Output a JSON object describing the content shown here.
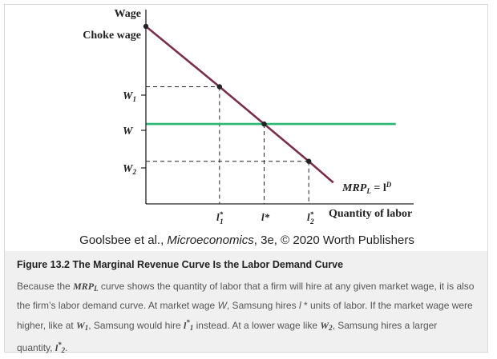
{
  "chart_data": {
    "type": "line",
    "title": "",
    "ylabel": "Wage",
    "xlabel": "Quantity of labor",
    "y_ticks": {
      "choke": "Choke wage",
      "w1": "W",
      "w1_sub": "1",
      "w": "W",
      "w2": "W",
      "w2_sub": "2"
    },
    "x_ticks": {
      "l1": "l",
      "l1_sup": "*",
      "l1_sub": "1",
      "l": "l*",
      "l2": "l",
      "l2_sup": "*",
      "l2_sub": "2"
    },
    "series": [
      {
        "name": "MRP = l",
        "label_main": "MRP",
        "label_sub": "L",
        "label_eq": " = l",
        "label_sup": "D",
        "color": "#7a2e4d",
        "points": [
          [
            0,
            100
          ],
          [
            33,
            66
          ],
          [
            53,
            45
          ],
          [
            73,
            24
          ],
          [
            84,
            12
          ]
        ]
      },
      {
        "color": "#2bb673",
        "points": [
          [
            0,
            45
          ],
          [
            112,
            45
          ]
        ]
      }
    ],
    "markers": [
      [
        0,
        100
      ],
      [
        33,
        66
      ],
      [
        53,
        45
      ],
      [
        73,
        24
      ]
    ],
    "guides": [
      {
        "from": [
          0,
          66
        ],
        "to": [
          33,
          66
        ]
      },
      {
        "from": [
          33,
          66
        ],
        "to": [
          33,
          0
        ]
      },
      {
        "from": [
          53,
          45
        ],
        "to": [
          53,
          0
        ]
      },
      {
        "from": [
          0,
          24
        ],
        "to": [
          73,
          24
        ]
      },
      {
        "from": [
          73,
          24
        ],
        "to": [
          73,
          0
        ]
      }
    ],
    "xlim": [
      0,
      120
    ],
    "ylim": [
      0,
      110
    ],
    "grid": false,
    "legend": "none"
  },
  "credit": {
    "pre": "Goolsbee et al., ",
    "book": "Microeconomics",
    "post": ", 3e, © 2020 Worth Publishers"
  },
  "caption": {
    "title": "Figure 13.2 The Marginal Revenue Curve Is the Labor Demand Curve",
    "p1": "Because the ",
    "p1_mrp": "MRP",
    "p1_mrp_sub": "L",
    "p2": " curve shows the quantity of labor that a firm will hire at any given market wage, it is also the firm’s labor demand curve. At market wage ",
    "p2_w": "W",
    "p3": ", Samsung hires ",
    "p3_l": "l",
    "p4": " * units of labor. If the market wage were higher, like at ",
    "p4_w": "W",
    "p4_w_sub": "1",
    "p5": ", Samsung would hire ",
    "p5_l": "l",
    "p5_sup": "*",
    "p5_sub": "1",
    "p6": " instead. At a lower wage like ",
    "p6_w": "W",
    "p6_w_sub": "2",
    "p7": ", Samsung hires a larger quantity, ",
    "p7_l": "l",
    "p7_sup": "*",
    "p7_sub": "2",
    "p8": "."
  }
}
